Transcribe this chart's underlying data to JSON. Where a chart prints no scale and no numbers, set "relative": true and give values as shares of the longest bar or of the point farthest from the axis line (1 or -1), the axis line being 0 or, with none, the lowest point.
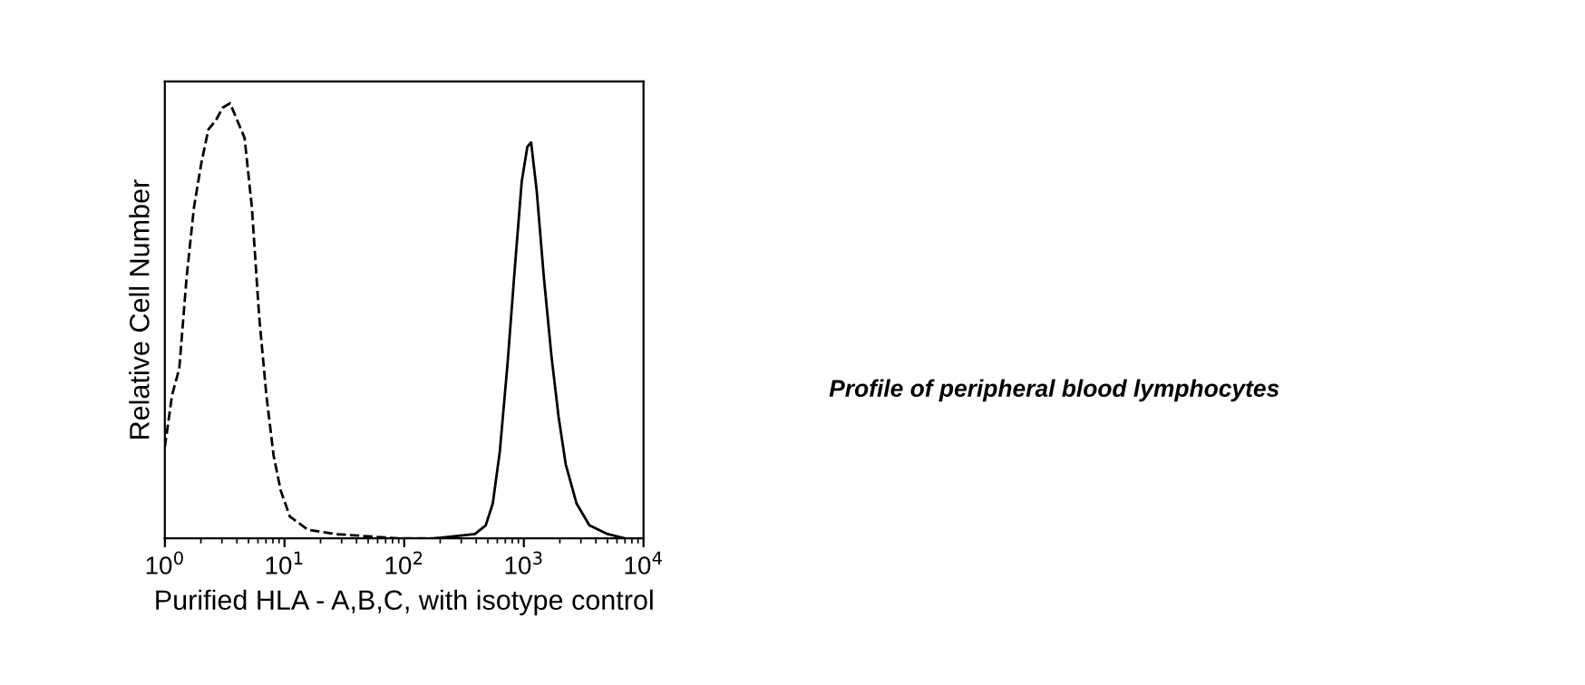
{
  "chart_data": {
    "type": "line",
    "relative": true,
    "log": "x",
    "xlabel": "Purified HLA - A,B,C, with isotype control",
    "ylabel": "Relative Cell Number",
    "xlim": [
      1,
      10000
    ],
    "xticks": [
      {
        "value": 1,
        "label": "10$^{0}$"
      },
      {
        "value": 10,
        "label": "10$^{1}$"
      },
      {
        "value": 100,
        "label": "10$^{2}$"
      },
      {
        "value": 1000,
        "label": "10$^{3}$"
      },
      {
        "value": 10000,
        "label": "10$^{4}$"
      }
    ],
    "tick_labels": "x",
    "grid": false,
    "legend": false,
    "marker": "none",
    "annotations": [
      "Profile of peripheral blood lymphocytes"
    ],
    "series": [
      {
        "color": "#000000",
        "line_style": "dashed",
        "x": [
          1.0,
          1.15,
          1.32,
          1.52,
          1.75,
          2.01,
          2.31,
          2.66,
          3.05,
          3.51,
          4.04,
          4.64,
          5.34,
          6.14,
          7.05,
          8.11,
          9.3,
          11.1,
          15.7,
          26.5,
          90,
          300
        ],
        "values": [
          0.21,
          0.33,
          0.39,
          0.6,
          0.76,
          0.86,
          0.94,
          0.96,
          0.99,
          1.0,
          0.96,
          0.92,
          0.76,
          0.51,
          0.33,
          0.19,
          0.11,
          0.05,
          0.02,
          0.01,
          0.0,
          0.0
        ]
      },
      {
        "color": "#000000",
        "line_style": "solid",
        "x": [
          180,
          390,
          480,
          550,
          630,
          730,
          840,
          960,
          1070,
          1150,
          1280,
          1470,
          1700,
          1950,
          2240,
          2760,
          3530,
          5020,
          7050
        ],
        "values": [
          0.0,
          0.01,
          0.03,
          0.08,
          0.2,
          0.4,
          0.62,
          0.82,
          0.9,
          0.91,
          0.8,
          0.6,
          0.42,
          0.28,
          0.17,
          0.08,
          0.03,
          0.01,
          0.0
        ]
      }
    ]
  }
}
